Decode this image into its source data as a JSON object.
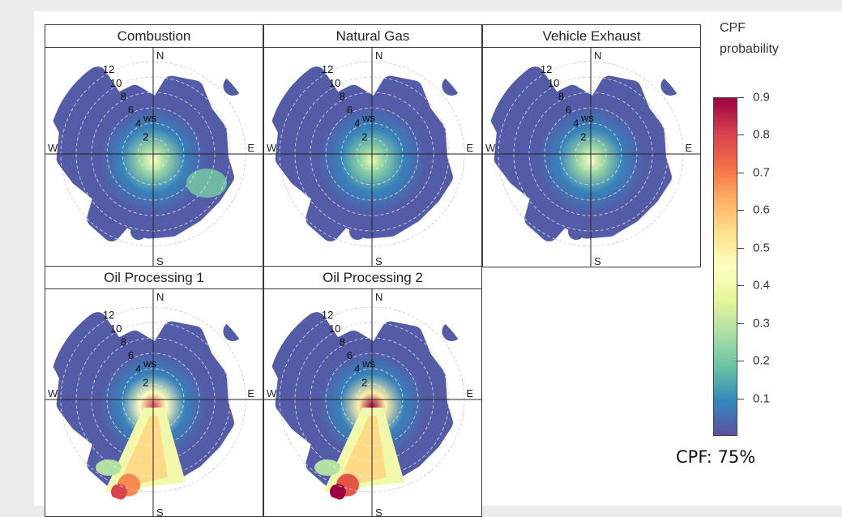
{
  "chart_data": {
    "type": "heatmap",
    "subtype": "polar CPF plot (conditional probability function) by wind direction and wind speed",
    "compass": [
      "N",
      "E",
      "S",
      "W"
    ],
    "radial_labels": [
      "2",
      "4",
      "6",
      "8",
      "10",
      "12"
    ],
    "radial_unit": "ws",
    "panels": [
      {
        "title": "Combustion",
        "max_cpf": 0.45,
        "hotspot": "center, extending toward SE (~0.2)"
      },
      {
        "title": "Natural Gas",
        "max_cpf": 0.4,
        "hotspot": "center"
      },
      {
        "title": "Vehicle Exhaust",
        "max_cpf": 0.45,
        "hotspot": "center"
      },
      {
        "title": "Oil Processing 1",
        "max_cpf": 0.8,
        "hotspot": "south / south-southwest at 6–12 ws"
      },
      {
        "title": "Oil Processing 2",
        "max_cpf": 0.9,
        "hotspot": "south / south-southwest at 6–12 ws"
      }
    ],
    "colorbar": {
      "title": "CPF\nprobability",
      "ticks": [
        "0.9",
        "0.8",
        "0.7",
        "0.6",
        "0.5",
        "0.4",
        "0.3",
        "0.2",
        "0.1"
      ],
      "range": [
        0,
        0.9
      ],
      "colors": [
        "#5e4fa2",
        "#3288bd",
        "#66c2a5",
        "#abdda4",
        "#e6f598",
        "#ffffbf",
        "#fee08b",
        "#fdae61",
        "#f46d43",
        "#d53e4f",
        "#9e0142"
      ]
    },
    "annotation": "CPF: 75%"
  }
}
